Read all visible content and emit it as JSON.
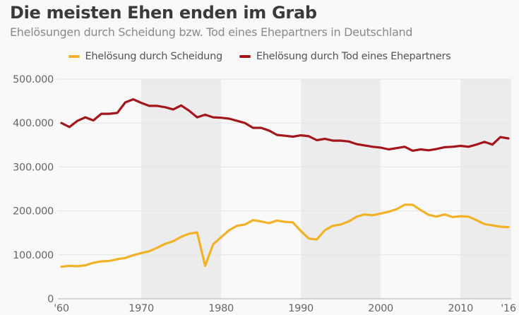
{
  "title": "Die meisten Ehen enden im Grab",
  "subtitle": "Ehelösungen durch Scheidung bzw. Tod eines Ehepartners in Deutschland",
  "colors": {
    "scheidung": "#f2b227",
    "tod": "#a3161c",
    "band": "#ececec",
    "grid": "#e4e4e4"
  },
  "chart_data": {
    "type": "line",
    "title": "Die meisten Ehen enden im Grab",
    "subtitle": "Ehelösungen durch Scheidung bzw. Tod eines Ehepartners in Deutschland",
    "xlabel": "",
    "ylabel": "",
    "ylim": [
      0,
      500000
    ],
    "xlim": [
      1960,
      2016
    ],
    "grid": true,
    "legend_position": "top-center",
    "y_ticks": [
      {
        "value": 0,
        "label": "0"
      },
      {
        "value": 100000,
        "label": "100.000"
      },
      {
        "value": 200000,
        "label": "200.000"
      },
      {
        "value": 300000,
        "label": "300.000"
      },
      {
        "value": 400000,
        "label": "400.000"
      },
      {
        "value": 500000,
        "label": "500.000"
      }
    ],
    "x_ticks": [
      {
        "value": 1960,
        "label": "'60"
      },
      {
        "value": 1970,
        "label": "1970"
      },
      {
        "value": 1980,
        "label": "1980"
      },
      {
        "value": 1990,
        "label": "1990"
      },
      {
        "value": 2000,
        "label": "2000"
      },
      {
        "value": 2010,
        "label": "2010"
      },
      {
        "value": 2016,
        "label": "'16"
      }
    ],
    "shaded_bands": [
      [
        1970,
        1980
      ],
      [
        1990,
        2000
      ],
      [
        2010,
        2016
      ]
    ],
    "x": [
      1960,
      1961,
      1962,
      1963,
      1964,
      1965,
      1966,
      1967,
      1968,
      1969,
      1970,
      1971,
      1972,
      1973,
      1974,
      1975,
      1976,
      1977,
      1978,
      1979,
      1980,
      1981,
      1982,
      1983,
      1984,
      1985,
      1986,
      1987,
      1988,
      1989,
      1990,
      1991,
      1992,
      1993,
      1994,
      1995,
      1996,
      1997,
      1998,
      1999,
      2000,
      2001,
      2002,
      2003,
      2004,
      2005,
      2006,
      2007,
      2008,
      2009,
      2010,
      2011,
      2012,
      2013,
      2014,
      2015,
      2016
    ],
    "series": [
      {
        "name": "Ehelösung durch Scheidung",
        "color": "#f2b227",
        "values": [
          73000,
          75000,
          74000,
          76000,
          82000,
          85000,
          86000,
          90000,
          93000,
          99000,
          104000,
          108000,
          116000,
          125000,
          131000,
          141000,
          148000,
          151000,
          75000,
          124000,
          140000,
          156000,
          166000,
          169000,
          179000,
          176000,
          172000,
          178000,
          175000,
          174000,
          154000,
          137000,
          135000,
          156000,
          166000,
          169000,
          176000,
          187000,
          192000,
          190000,
          194000,
          198000,
          204000,
          214000,
          214000,
          202000,
          191000,
          187000,
          192000,
          186000,
          188000,
          187000,
          179000,
          170000,
          167000,
          164000,
          163000
        ]
      },
      {
        "name": "Ehelösung durch Tod eines Ehepartners",
        "color": "#a3161c",
        "values": [
          400000,
          391000,
          405000,
          413000,
          406000,
          421000,
          421000,
          423000,
          447000,
          454000,
          446000,
          439000,
          439000,
          436000,
          431000,
          440000,
          428000,
          413000,
          419000,
          413000,
          412000,
          410000,
          405000,
          400000,
          389000,
          389000,
          383000,
          373000,
          371000,
          369000,
          372000,
          370000,
          361000,
          364000,
          360000,
          360000,
          358000,
          352000,
          349000,
          346000,
          344000,
          340000,
          343000,
          346000,
          337000,
          340000,
          338000,
          341000,
          345000,
          346000,
          348000,
          346000,
          351000,
          357000,
          351000,
          368000,
          365000
        ]
      }
    ]
  }
}
